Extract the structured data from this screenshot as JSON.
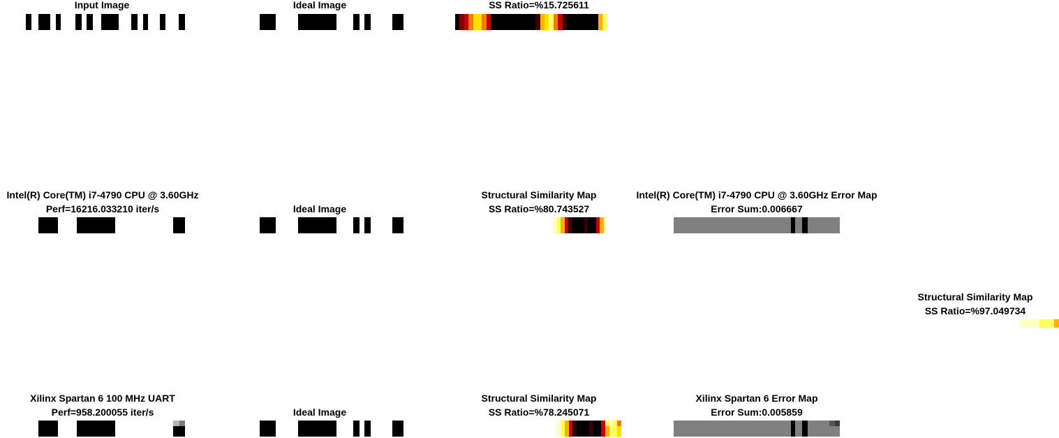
{
  "colors": {
    "background": "#ffffff",
    "map_gray": "#808080",
    "hot_palette": [
      "#000000",
      "#3a0000",
      "#800000",
      "#c40000",
      "#ff2000",
      "#ff7a00",
      "#ffb000",
      "#ffe000",
      "#ffff60",
      "#ffffc8",
      "#ffffff"
    ]
  },
  "rows": [
    {
      "panels": [
        {
          "title_lines": [
            "Input Image"
          ],
          "image": "binary-strip",
          "bars": [
            [
              0.0,
              0.036
            ],
            [
              0.079,
              0.155
            ],
            [
              0.187,
              0.22
            ],
            [
              0.31,
              0.352
            ],
            [
              0.383,
              0.419
            ],
            [
              0.474,
              0.584
            ],
            [
              0.662,
              0.703
            ],
            [
              0.736,
              0.769
            ],
            [
              0.842,
              0.877
            ],
            [
              0.96,
              1.0
            ]
          ]
        },
        {
          "title_lines": [
            "Ideal Image"
          ],
          "image": "binary-strip",
          "bars": [
            [
              0.0,
              0.11
            ],
            [
              0.265,
              0.535
            ],
            [
              0.652,
              0.696
            ],
            [
              0.73,
              0.774
            ],
            [
              0.923,
              1.0
            ]
          ]
        },
        {
          "title_lines": [
            "SS Ratio=%15.725611"
          ],
          "image": "heat-strip",
          "levels": [
            0.4,
            1.5,
            2.8,
            4.8,
            6.5,
            7.2,
            4.5,
            2.7,
            0,
            0,
            0,
            0,
            0,
            0,
            0,
            0,
            0,
            0,
            1.4,
            5.8,
            6.7,
            7.5,
            5.4,
            3.0,
            0.5,
            0,
            0,
            0,
            0,
            0,
            0,
            0,
            6.0,
            8.4,
            9.6
          ]
        },
        null,
        null
      ]
    },
    {
      "panels": [
        {
          "title_lines": [
            "Intel(R) Core(TM) i7-4790 CPU @ 3.60GHz",
            "Perf=16216.033210 iter/s"
          ],
          "image": "binary-strip",
          "bars": [
            [
              0.079,
              0.2
            ],
            [
              0.321,
              0.56
            ],
            [
              0.927,
              1.0
            ]
          ]
        },
        {
          "title_lines": [
            "Ideal Image"
          ],
          "image": "binary-strip",
          "bars": [
            [
              0.0,
              0.11
            ],
            [
              0.265,
              0.535
            ],
            [
              0.652,
              0.696
            ],
            [
              0.73,
              0.774
            ],
            [
              0.923,
              1.0
            ]
          ]
        },
        {
          "title_lines": [
            "Structural Similarity Map",
            "SS Ratio=%80.743527"
          ],
          "image": "heat-strip",
          "levels": [
            10,
            10,
            10,
            10,
            10,
            10,
            10,
            10,
            10,
            10,
            10,
            10,
            10,
            10,
            10,
            10,
            10,
            10,
            10,
            10,
            10,
            10,
            10,
            10,
            9.6,
            8.7,
            7.5,
            6.3,
            2.8,
            0.9,
            0,
            0,
            0.3,
            0.7,
            0,
            0,
            3.3,
            5.8,
            9.0,
            9.8
          ]
        },
        {
          "title_lines": [
            "Intel(R) Core(TM) i7-4790 CPU @ 3.60GHz Error Map",
            "Error Sum:0.006667"
          ],
          "image": "gray-map",
          "dark_bars": [
            [
              0.706,
              0.733
            ],
            [
              0.773,
              0.808
            ]
          ],
          "dark_cells": []
        },
        null
      ]
    },
    {
      "panels": [
        null,
        null,
        null,
        null,
        {
          "title_lines": [
            "Structural Similarity Map",
            "SS Ratio=%97.049734"
          ],
          "image": "heat-map",
          "levels": [
            9.2,
            9.0,
            8.8,
            8.6,
            8.4,
            8.0,
            7.6,
            5.5
          ],
          "bottom_level": 9.6
        }
      ]
    },
    {
      "panels": [
        {
          "title_lines": [
            "Xilinx Spartan 6 100 MHz UART",
            "Perf=958.200055 iter/s"
          ],
          "image": "binary-strip",
          "bars": [
            [
              0.079,
              0.2
            ],
            [
              0.321,
              0.56
            ],
            [
              0.927,
              1.0
            ]
          ],
          "top_fade_cells": [
            [
              0.927,
              0.963,
              "#b4b4b4"
            ],
            [
              0.963,
              1.0,
              "#7a7a7a"
            ]
          ]
        },
        {
          "title_lines": [
            "Ideal Image"
          ],
          "image": "binary-strip",
          "bars": [
            [
              0.0,
              0.11
            ],
            [
              0.265,
              0.535
            ],
            [
              0.652,
              0.696
            ],
            [
              0.73,
              0.774
            ],
            [
              0.923,
              1.0
            ]
          ]
        },
        {
          "title_lines": [
            "Structural Similarity Map",
            "SS Ratio=%78.245071"
          ],
          "image": "heat-strip",
          "levels": [
            10,
            10,
            10,
            10,
            10,
            10,
            10,
            10,
            10,
            10,
            10,
            10,
            10,
            10,
            10,
            10,
            10,
            10,
            10,
            10,
            10,
            10,
            10,
            10,
            9.6,
            8.7,
            7.5,
            6.3,
            2.8,
            0.9,
            0,
            0,
            0.3,
            0.7,
            0,
            0,
            3.3,
            5.8,
            8.4,
            8.0,
            6.8
          ],
          "top_levels_tail": [
            7.8,
            8.6,
            7.6,
            5.2
          ]
        },
        {
          "title_lines": [
            "Xilinx Spartan 6 Error Map",
            "Error Sum:0.005859"
          ],
          "image": "gray-map",
          "dark_bars": [
            [
              0.706,
              0.733
            ],
            [
              0.773,
              0.808
            ]
          ],
          "dark_cells": [
            [
              0.936,
              0.97,
              "#555555"
            ],
            [
              0.97,
              1.0,
              "#3a3a3a"
            ]
          ]
        },
        null
      ]
    }
  ]
}
